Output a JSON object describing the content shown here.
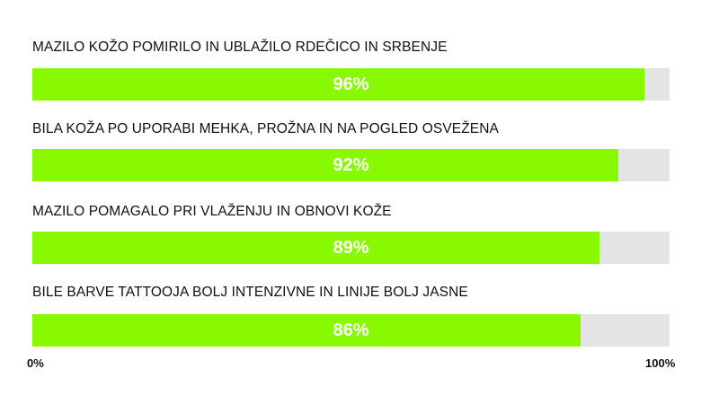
{
  "chart_data": {
    "type": "bar",
    "orientation": "horizontal",
    "categories": [
      "MAZILO KOŽO POMIRILO IN UBLAŽILO RDEČICO IN SRBENJE",
      "BILA KOŽA PO UPORABI MEHKA, PROŽNA IN NA POGLED OSVEŽENA",
      "MAZILO POMAGALO PRI VLAŽENJU IN OBNOVI KOŽE",
      "BILE BARVE TATTOOJA BOLJ INTENZIVNE IN LINIJE BOLJ JASNE"
    ],
    "values": [
      96,
      92,
      89,
      86
    ],
    "data_labels": [
      "96%",
      "92%",
      "89%",
      "86%"
    ],
    "xlim": [
      0,
      100
    ],
    "tick_labels": [
      "0%",
      "100%"
    ],
    "grid": false,
    "colors": {
      "fill": "#88f900",
      "track": "#e4e4e4"
    }
  }
}
